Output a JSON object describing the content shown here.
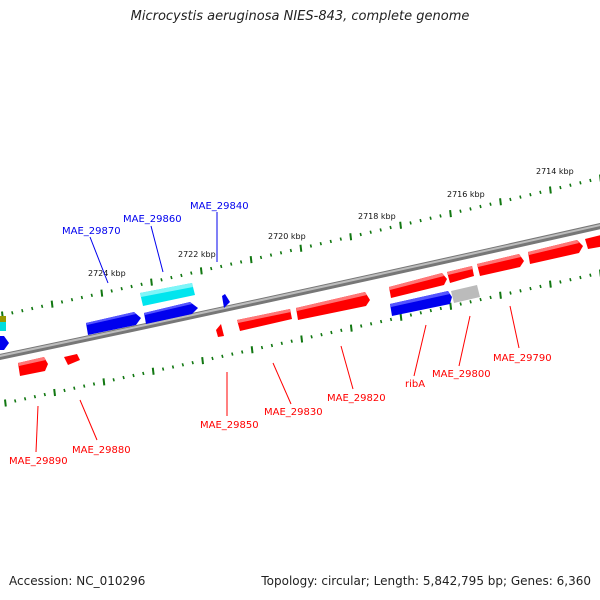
{
  "title": "Microcystis aeruginosa NIES-843, complete genome",
  "footer": {
    "accession": "Accession: NC_010296",
    "topology": "Topology: circular; Length: 5,842,795 bp; Genes: 6,360"
  },
  "colors": {
    "forward_gene": "#ff0000",
    "reverse_gene": "#0000ee",
    "rna_gene": "#00e5ee",
    "other_gene": "#bbbbbb",
    "backbone": "#888888",
    "tick": "#117711"
  },
  "scale_labels": [
    "2724 kbp",
    "2722 kbp",
    "2720 kbp",
    "2718 kbp",
    "2716 kbp",
    "2714 kbp"
  ],
  "genes": [
    {
      "name": "MAE_29870",
      "strand": "reverse"
    },
    {
      "name": "MAE_29860",
      "strand": "reverse"
    },
    {
      "name": "MAE_29840",
      "strand": "reverse"
    },
    {
      "name": "MAE_29890",
      "strand": "forward"
    },
    {
      "name": "MAE_29880",
      "strand": "forward"
    },
    {
      "name": "MAE_29850",
      "strand": "forward"
    },
    {
      "name": "MAE_29830",
      "strand": "forward"
    },
    {
      "name": "MAE_29820",
      "strand": "forward"
    },
    {
      "name": "ribA",
      "strand": "forward"
    },
    {
      "name": "MAE_29800",
      "strand": "forward"
    },
    {
      "name": "MAE_29790",
      "strand": "forward"
    }
  ]
}
